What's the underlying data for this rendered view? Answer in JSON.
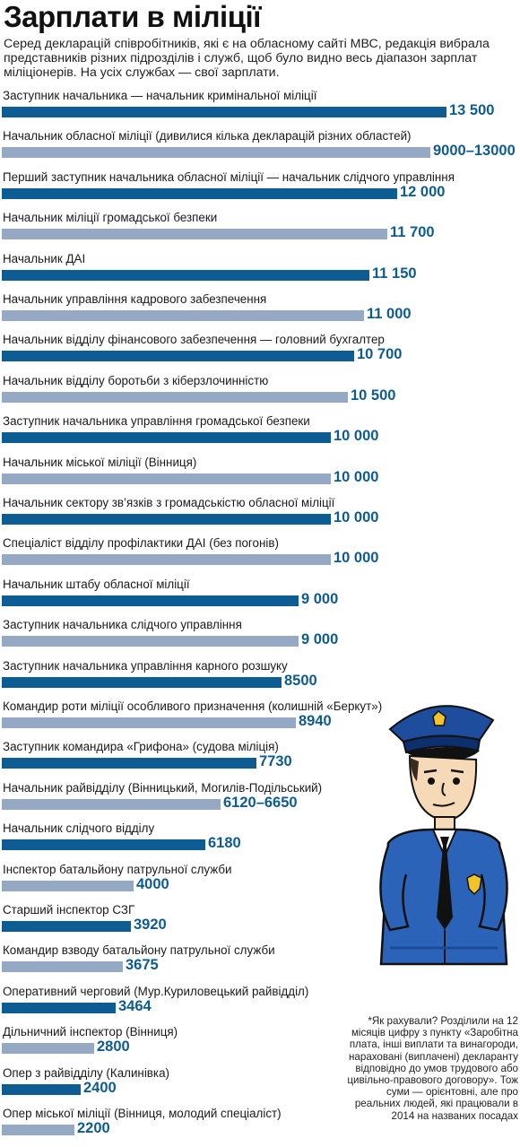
{
  "title": "Зарплати в міліції",
  "subtitle": "Серед декларацій співробітників, які є на обласному сайті МВС, редакція вибрала представників різних підрозділів і служб, щоб було видно весь діапазон зарплат міліціонерів. На усіх службах — свої зарплати.",
  "colors": {
    "dark_bar": "#0d5c93",
    "light_bar": "#96a9c4",
    "value_text": "#0e5b8f",
    "police_uniform": "#2b63b8"
  },
  "chart_data": {
    "type": "bar",
    "orientation": "horizontal",
    "grid": false,
    "categories": [
      "Заступник начальника — начальник кримінальної міліції",
      "Начальник обласної міліції (дивилися кілька декларацій різних областей)",
      "Перший заступник начальника обласної міліції — начальник слідчого управління",
      "Начальник міліції громадської безпеки",
      "Начальник ДАІ",
      "Начальник управління кадрового забезпечення",
      "Начальник відділу фінансового забезпечення — головний бухгалтер",
      "Начальник відділу боротьби з кіберзлочинністю",
      "Заступник начальника управління громадської безпеки",
      "Начальник міської міліції (Вінниця)",
      "Начальник сектору зв’язків з громадськістю обласної міліції",
      "Спеціаліст відділу профілактики ДАІ (без погонів)",
      "Начальник штабу обласної міліції",
      "Заступник начальника слідчого управління",
      "Заступник начальника управління карного розшуку",
      "Командир роти міліції особливого призначення (колишній «Беркут»)",
      "Заступник командира «Грифона» (судова міліція)",
      "Начальник райвідділу (Вінницький, Могилів-Подільський)",
      "Начальник слідчого відділу",
      "Інспектор батальйону патрульної служби",
      "Старший інспектор СЗГ",
      "Командир взводу батальйону патрульної служби",
      "Оперативний черговий (Мур.Куриловецький райвідділ)",
      "Дільничний інспектор (Вінниця)",
      "Опер з райвідділу (Калинівка)",
      "Опер міської міліції (Вінниця, молодий спеціаліст)"
    ],
    "values": [
      13500,
      13000,
      12000,
      11700,
      11150,
      11000,
      10700,
      10500,
      10000,
      10000,
      10000,
      10000,
      9000,
      9000,
      8500,
      8940,
      7730,
      6650,
      6180,
      4000,
      3920,
      3675,
      3464,
      2800,
      2400,
      2200
    ],
    "value_labels": [
      "13 500",
      "9000–13000",
      "12 000",
      "11 700",
      "11 150",
      "11 000",
      "10 700",
      "10 500",
      "10 000",
      "10 000",
      "10 000",
      "10 000",
      "9 000",
      "9 000",
      "8500",
      "8940",
      "7730",
      "6120–6650",
      "6180",
      "4000",
      "3920",
      "3675",
      "3464",
      "2800",
      "2400",
      "2200"
    ],
    "bar_shades": [
      "dark",
      "light",
      "dark",
      "light",
      "dark",
      "light",
      "dark",
      "light",
      "dark",
      "light",
      "dark",
      "light",
      "dark",
      "light",
      "dark",
      "light",
      "dark",
      "light",
      "dark",
      "light",
      "dark",
      "light",
      "dark",
      "light",
      "dark",
      "light"
    ]
  },
  "note": "*Як рахували? Розділили на 12 місяців цифру з пункту «Заробітна плата, інші виплати та винагороди, нараховані (виплачені) декларанту відповідно до умов трудового або цивільно-правового договору». Тож суми — орієнтовні, але про реальних людей, які працювали в 2014 на названих посадах"
}
